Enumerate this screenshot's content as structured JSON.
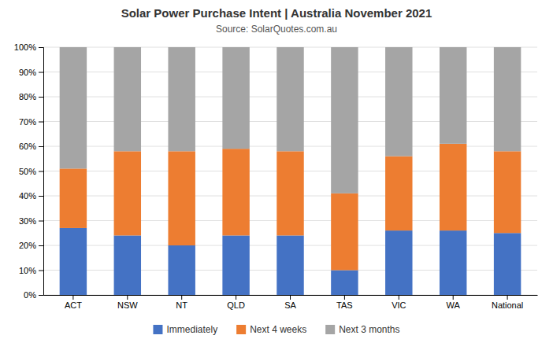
{
  "chart_data": {
    "type": "bar",
    "stacked": true,
    "title": "Solar Power Purchase Intent | Australia November 2021",
    "subtitle": "Source: SolarQuotes.com.au",
    "categories": [
      "ACT",
      "NSW",
      "NT",
      "QLD",
      "SA",
      "TAS",
      "VIC",
      "WA",
      "National"
    ],
    "series": [
      {
        "name": "Immediately",
        "color": "#4472C4",
        "values": [
          27,
          24,
          20,
          24,
          24,
          10,
          26,
          26,
          25
        ]
      },
      {
        "name": "Next 4 weeks",
        "color": "#ED7D31",
        "values": [
          24,
          34,
          38,
          35,
          34,
          31,
          30,
          35,
          33
        ]
      },
      {
        "name": "Next 3 months",
        "color": "#A5A5A5",
        "values": [
          49,
          42,
          42,
          41,
          42,
          59,
          44,
          39,
          42
        ]
      }
    ],
    "ylim": [
      0,
      100
    ],
    "yticks": [
      {
        "value": 0,
        "label": "0%"
      },
      {
        "value": 10,
        "label": "10%"
      },
      {
        "value": 20,
        "label": "20%"
      },
      {
        "value": 30,
        "label": "30%"
      },
      {
        "value": 40,
        "label": "40%"
      },
      {
        "value": 50,
        "label": "50%"
      },
      {
        "value": 60,
        "label": "60%"
      },
      {
        "value": 70,
        "label": "70%"
      },
      {
        "value": 80,
        "label": "80%"
      },
      {
        "value": 90,
        "label": "90%"
      },
      {
        "value": 100,
        "label": "100%"
      }
    ],
    "grid": true,
    "legend": "bottom"
  }
}
